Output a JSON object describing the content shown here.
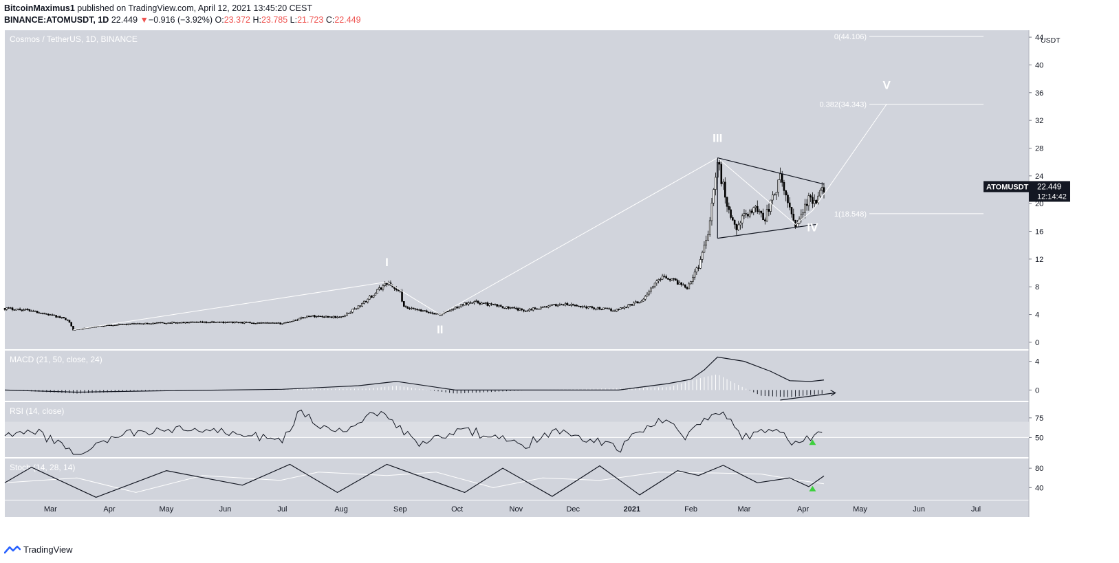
{
  "header": {
    "author": "BitcoinMaximus1",
    "published_text": "published on TradingView.com, April 12, 2021 13:45:20 CEST",
    "symbol_line": "BINANCE:ATOMUSDT, 1D",
    "last": "22.449",
    "change_arrow": "▼",
    "change": "−0.916 (−3.92%)",
    "o_label": "O:",
    "o_value": "23.372",
    "h_label": "H:",
    "h_value": "23.785",
    "l_label": "L:",
    "l_value": "21.723",
    "c_label": "C:",
    "c_value": "22.449"
  },
  "footer": {
    "brand": "TradingView"
  },
  "colors": {
    "pane_bg": "#d1d4dc",
    "candle": "#000000",
    "annotation": "#ffffff",
    "rsi_band": "#dcdee4",
    "signal_marker": "#3dd03d",
    "price_tag_bg": "#131722"
  },
  "chart_data": [
    {
      "type": "candlestick",
      "title": "Cosmos / TetherUS, 1D, BINANCE",
      "symbol_tag": "ATOMUSDT",
      "last_price_label": "22.449",
      "countdown": "12:14:42",
      "unit_label": "USDT",
      "ylim": [
        -1,
        45
      ],
      "y_ticks": [
        0,
        4,
        8,
        12,
        16,
        20,
        24,
        28,
        32,
        36,
        40,
        44
      ],
      "x_ticks": [
        "Mar",
        "Apr",
        "May",
        "Jun",
        "Jul",
        "Aug",
        "Sep",
        "Oct",
        "Nov",
        "Dec",
        "2021",
        "Feb",
        "Mar",
        "Apr",
        "May",
        "Jun",
        "Jul"
      ],
      "x_tick_dates": [
        "2020-03-01",
        "2020-04-01",
        "2020-05-01",
        "2020-06-01",
        "2020-07-01",
        "2020-08-01",
        "2020-09-01",
        "2020-10-01",
        "2020-11-01",
        "2020-12-01",
        "2021-01-01",
        "2021-02-01",
        "2021-03-01",
        "2021-04-01",
        "2021-05-01",
        "2021-06-01",
        "2021-07-01"
      ],
      "price_path": [
        [
          "2020-02-06",
          4.9
        ],
        [
          "2020-02-20",
          4.6
        ],
        [
          "2020-03-10",
          3.3
        ],
        [
          "2020-03-13",
          1.8
        ],
        [
          "2020-04-01",
          2.5
        ],
        [
          "2020-05-01",
          2.8
        ],
        [
          "2020-06-01",
          2.9
        ],
        [
          "2020-07-01",
          2.7
        ],
        [
          "2020-07-15",
          3.8
        ],
        [
          "2020-08-01",
          3.6
        ],
        [
          "2020-08-12",
          5.5
        ],
        [
          "2020-08-25",
          8.6
        ],
        [
          "2020-09-01",
          7.2
        ],
        [
          "2020-09-03",
          5.0
        ],
        [
          "2020-09-22",
          4.0
        ],
        [
          "2020-10-08",
          5.9
        ],
        [
          "2020-11-05",
          4.6
        ],
        [
          "2020-11-25",
          5.5
        ],
        [
          "2020-12-23",
          4.6
        ],
        [
          "2021-01-06",
          6.0
        ],
        [
          "2021-01-17",
          9.7
        ],
        [
          "2021-01-30",
          8.0
        ],
        [
          "2021-02-05",
          11.0
        ],
        [
          "2021-02-10",
          16.0
        ],
        [
          "2021-02-15",
          26.0
        ],
        [
          "2021-02-20",
          20.0
        ],
        [
          "2021-02-24",
          16.5
        ],
        [
          "2021-03-06",
          19.5
        ],
        [
          "2021-03-12",
          18.0
        ],
        [
          "2021-03-20",
          23.5
        ],
        [
          "2021-03-28",
          17.0
        ],
        [
          "2021-04-04",
          20.5
        ],
        [
          "2021-04-08",
          20.0
        ],
        [
          "2021-04-12",
          22.449
        ]
      ],
      "ohlc_last": {
        "open": 23.372,
        "high": 23.785,
        "low": 21.723,
        "close": 22.449
      },
      "wave_labels": [
        {
          "label": "I",
          "date": "2020-08-25",
          "price": 11.0
        },
        {
          "label": "II",
          "date": "2020-09-22",
          "price": 1.3
        },
        {
          "label": "III",
          "date": "2021-02-15",
          "price": 28.9
        },
        {
          "label": "IV",
          "date": "2021-04-06",
          "price": 16.0
        },
        {
          "label": "V",
          "date": "2021-05-15",
          "price": 36.5
        }
      ],
      "wave_path": [
        [
          "2020-03-13",
          1.8
        ],
        [
          "2020-08-25",
          8.7
        ],
        [
          "2020-09-22",
          4.0
        ],
        [
          "2021-02-15",
          26.6
        ],
        [
          "2021-03-28",
          17.0
        ],
        [
          "2021-04-06",
          19.0
        ],
        [
          "2021-05-15",
          34.343
        ]
      ],
      "triangle": {
        "upper": [
          [
            "2021-02-15",
            26.6
          ],
          [
            "2021-04-12",
            22.8
          ]
        ],
        "lower": [
          [
            "2021-02-15",
            15.0
          ],
          [
            "2021-04-08",
            17.0
          ]
        ]
      },
      "fib_levels": [
        {
          "label": "0(44.106)",
          "value": 44.106
        },
        {
          "label": "0.382(34.343)",
          "value": 34.343
        },
        {
          "label": "1(18.548)",
          "value": 18.548
        }
      ]
    },
    {
      "type": "line",
      "title": "MACD (21, 50, close, 24)",
      "ylim": [
        -1.5,
        5.5
      ],
      "y_ticks": [
        0,
        4
      ],
      "series": [
        {
          "values": [
            [
              "2020-02-06",
              0
            ],
            [
              "2020-03-15",
              -0.3
            ],
            [
              "2020-05-01",
              -0.1
            ],
            [
              "2020-07-01",
              0.1
            ],
            [
              "2020-08-10",
              0.6
            ],
            [
              "2020-08-30",
              1.2
            ],
            [
              "2020-09-30",
              0
            ],
            [
              "2020-11-10",
              0
            ],
            [
              "2020-12-25",
              0
            ],
            [
              "2021-01-20",
              0.9
            ],
            [
              "2021-02-01",
              1.5
            ],
            [
              "2021-02-08",
              2.8
            ],
            [
              "2021-02-15",
              4.6
            ],
            [
              "2021-03-01",
              4.0
            ],
            [
              "2021-03-15",
              2.6
            ],
            [
              "2021-03-25",
              1.3
            ],
            [
              "2021-04-05",
              1.2
            ],
            [
              "2021-04-12",
              1.4
            ]
          ]
        }
      ],
      "histogram": [
        [
          "2020-02-06",
          0
        ],
        [
          "2020-03-15",
          -0.5
        ],
        [
          "2020-05-01",
          0
        ],
        [
          "2020-08-15",
          0.2
        ],
        [
          "2020-08-30",
          0.6
        ],
        [
          "2020-09-30",
          -0.5
        ],
        [
          "2020-11-10",
          0
        ],
        [
          "2021-01-20",
          0.4
        ],
        [
          "2021-02-08",
          1.8
        ],
        [
          "2021-02-15",
          2.2
        ],
        [
          "2021-03-01",
          0.3
        ],
        [
          "2021-03-10",
          -0.8
        ],
        [
          "2021-03-25",
          -1.0
        ],
        [
          "2021-04-12",
          -0.5
        ]
      ],
      "divergence_line": [
        [
          "2021-03-20",
          -1.4
        ],
        [
          "2021-04-18",
          -0.4
        ]
      ]
    },
    {
      "type": "line",
      "title": "RSI (14, close)",
      "ylim": [
        25,
        95
      ],
      "y_ticks": [
        50,
        75
      ],
      "band": [
        50,
        70
      ],
      "series": [
        {
          "values": [
            [
              "2020-02-06",
              58
            ],
            [
              "2020-02-25",
              55
            ],
            [
              "2020-03-13",
              28
            ],
            [
              "2020-04-10",
              55
            ],
            [
              "2020-05-10",
              60
            ],
            [
              "2020-06-10",
              55
            ],
            [
              "2020-06-30",
              45
            ],
            [
              "2020-07-10",
              82
            ],
            [
              "2020-07-30",
              55
            ],
            [
              "2020-08-15",
              78
            ],
            [
              "2020-08-25",
              80
            ],
            [
              "2020-09-10",
              40
            ],
            [
              "2020-10-05",
              60
            ],
            [
              "2020-11-05",
              40
            ],
            [
              "2020-11-25",
              60
            ],
            [
              "2020-12-25",
              35
            ],
            [
              "2021-01-10",
              68
            ],
            [
              "2021-01-20",
              75
            ],
            [
              "2021-01-30",
              50
            ],
            [
              "2021-02-15",
              86
            ],
            [
              "2021-02-28",
              52
            ],
            [
              "2021-03-20",
              58
            ],
            [
              "2021-03-28",
              42
            ],
            [
              "2021-04-06",
              50
            ],
            [
              "2021-04-12",
              60
            ]
          ]
        }
      ],
      "signal_marker": {
        "date": "2021-04-06",
        "value": 44
      }
    },
    {
      "type": "line",
      "title": "Stoch (14, 28, 14)",
      "ylim": [
        15,
        100
      ],
      "y_ticks": [
        40,
        80
      ],
      "series": [
        {
          "values": [
            [
              "2020-02-06",
              50
            ],
            [
              "2020-02-20",
              82
            ],
            [
              "2020-03-25",
              20
            ],
            [
              "2020-05-01",
              75
            ],
            [
              "2020-06-10",
              45
            ],
            [
              "2020-07-05",
              88
            ],
            [
              "2020-07-30",
              30
            ],
            [
              "2020-08-25",
              88
            ],
            [
              "2020-10-05",
              30
            ],
            [
              "2020-10-25",
              80
            ],
            [
              "2020-11-20",
              22
            ],
            [
              "2020-12-15",
              85
            ],
            [
              "2021-01-05",
              25
            ],
            [
              "2021-01-25",
              75
            ],
            [
              "2021-02-05",
              65
            ],
            [
              "2021-02-18",
              86
            ],
            [
              "2021-03-08",
              50
            ],
            [
              "2021-03-25",
              60
            ],
            [
              "2021-04-04",
              42
            ],
            [
              "2021-04-12",
              64
            ]
          ]
        },
        {
          "values": [
            [
              "2020-02-06",
              50
            ],
            [
              "2020-03-15",
              60
            ],
            [
              "2020-04-15",
              30
            ],
            [
              "2020-05-20",
              65
            ],
            [
              "2020-06-30",
              55
            ],
            [
              "2020-07-20",
              72
            ],
            [
              "2020-08-25",
              65
            ],
            [
              "2020-09-20",
              72
            ],
            [
              "2020-10-20",
              40
            ],
            [
              "2020-11-15",
              60
            ],
            [
              "2020-12-15",
              55
            ],
            [
              "2021-01-15",
              72
            ],
            [
              "2021-02-15",
              70
            ],
            [
              "2021-03-10",
              68
            ],
            [
              "2021-03-30",
              55
            ],
            [
              "2021-04-12",
              48
            ]
          ]
        }
      ],
      "signal_marker": {
        "date": "2021-04-06",
        "value": 38
      }
    }
  ]
}
